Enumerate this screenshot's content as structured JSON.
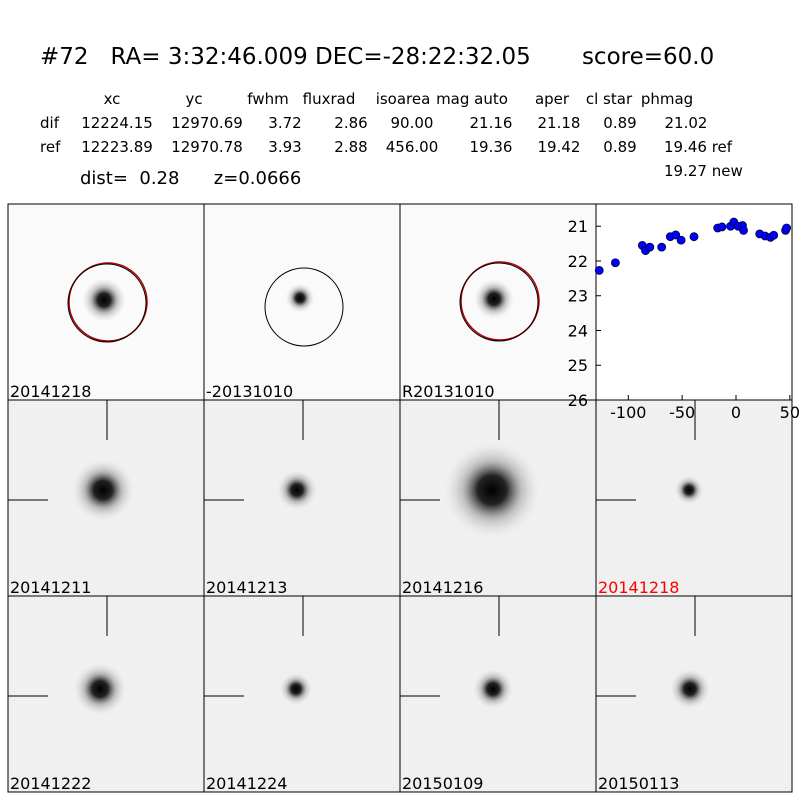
{
  "header": {
    "title": "#72   RA= 3:32:46.009 DEC=-28:22:32.05       score=60.0"
  },
  "table": {
    "columns": [
      "xc",
      "yc",
      "fwhm",
      "fluxrad",
      "isoarea",
      "mag auto",
      "aper",
      "cl star",
      "phmag"
    ],
    "rows": [
      [
        "dif",
        "12224.15",
        "12970.69",
        "3.72",
        "2.86",
        "90.00",
        "21.16",
        "21.18",
        "0.89",
        "21.02"
      ],
      [
        "ref",
        "12223.89",
        "12970.78",
        "3.93",
        "2.88",
        "456.00",
        "19.36",
        "19.42",
        "0.89",
        "19.46 ref"
      ]
    ],
    "new_mag": "19.27 new",
    "summary": "dist=  0.28      z=0.0666"
  },
  "stamps": [
    {
      "label": "20141218"
    },
    {
      "label": "-20131010"
    },
    {
      "label": "R20131010"
    },
    {
      "label": "20141211"
    },
    {
      "label": "20141213"
    },
    {
      "label": "20141216"
    },
    {
      "label": "20141218",
      "color": "#ff0000"
    },
    {
      "label": "20141222"
    },
    {
      "label": "20141224"
    },
    {
      "label": "20150109"
    },
    {
      "label": "20150113"
    }
  ],
  "chart_data": {
    "type": "scatter",
    "color": "#0000ff",
    "x": [
      -127,
      -112,
      -87,
      -84,
      -80,
      -69,
      -61,
      -56,
      -51,
      -39,
      -17,
      -13,
      -5,
      -2,
      2,
      6,
      7,
      22,
      27,
      32,
      35,
      46,
      47
    ],
    "values": [
      22.27,
      22.05,
      21.55,
      21.7,
      21.6,
      21.6,
      21.3,
      21.25,
      21.4,
      21.3,
      21.05,
      21.02,
      21.0,
      20.88,
      21.0,
      20.98,
      21.12,
      21.22,
      21.28,
      21.32,
      21.26,
      21.12,
      21.05
    ],
    "xlim": [
      -130,
      52
    ],
    "ylim": [
      26,
      20.36
    ],
    "xticks": [
      -100,
      -50,
      0,
      50
    ],
    "yticks": [
      21,
      22,
      23,
      24,
      25,
      26
    ]
  }
}
